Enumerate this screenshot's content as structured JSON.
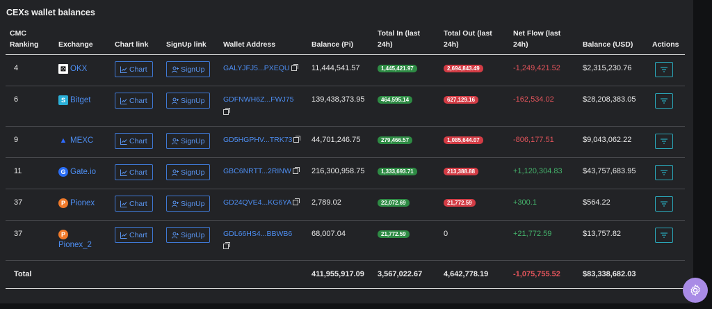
{
  "title": "CEXs wallet balances",
  "headers": {
    "rank": "CMC Ranking",
    "exchange": "Exchange",
    "chart": "Chart link",
    "signup": "SignUp link",
    "wallet": "Wallet Address",
    "balance_pi": "Balance (Pi)",
    "total_in": "Total In (last 24h)",
    "total_out": "Total Out (last 24h)",
    "net_flow": "Net Flow (last 24h)",
    "balance_usd": "Balance (USD)",
    "actions": "Actions"
  },
  "buttons": {
    "chart": "Chart",
    "signup": "SignUp"
  },
  "rows": [
    {
      "rank": "4",
      "exchange": "OKX",
      "logo": "okx-logo",
      "wallet": "GALYJFJ5...PXEQU",
      "balance_pi": "11,444,541.57",
      "total_in": "1,445,421.97",
      "total_out": "2,694,843.49",
      "net_flow": "-1,249,421.52",
      "balance_usd": "$2,315,230.76"
    },
    {
      "rank": "6",
      "exchange": "Bitget",
      "logo": "bitget-logo",
      "wallet": "GDFNWH6Z...FWJ75",
      "balance_pi": "139,438,373.95",
      "total_in": "464,595.14",
      "total_out": "627,129.16",
      "net_flow": "-162,534.02",
      "balance_usd": "$28,208,383.05"
    },
    {
      "rank": "9",
      "exchange": "MEXC",
      "logo": "mexc-logo",
      "wallet": "GD5HGPHV...TRK73",
      "balance_pi": "44,701,246.75",
      "total_in": "279,466.57",
      "total_out": "1,085,644.07",
      "net_flow": "-806,177.51",
      "balance_usd": "$9,043,062.22"
    },
    {
      "rank": "11",
      "exchange": "Gate.io",
      "logo": "gate-logo",
      "wallet": "GBC6NRTT...2RINW",
      "balance_pi": "216,300,958.75",
      "total_in": "1,333,693.71",
      "total_out": "213,388.88",
      "net_flow": "+1,120,304.83",
      "balance_usd": "$43,757,683.95"
    },
    {
      "rank": "37",
      "exchange": "Pionex",
      "logo": "pionex-logo",
      "wallet": "GD24QVE4...KG6YA",
      "balance_pi": "2,789.02",
      "total_in": "22,072.69",
      "total_out": "21,772.59",
      "net_flow": "+300.1",
      "balance_usd": "$564.22"
    },
    {
      "rank": "37",
      "exchange": "Pionex_2",
      "logo": "pionex-logo",
      "wallet": "GDL66HS4...BBWB6",
      "balance_pi": "68,007.04",
      "total_in": "21,772.59",
      "total_out": "0",
      "net_flow": "+21,772.59",
      "balance_usd": "$13,757.82"
    }
  ],
  "total": {
    "label": "Total",
    "balance_pi": "411,955,917.09",
    "total_in": "3,567,022.67",
    "total_out": "4,642,778.19",
    "net_flow": "-1,075,755.52",
    "balance_usd": "$83,338,682.03"
  },
  "colors": {
    "in_pill": "#2e8b44",
    "out_pill": "#d33c45",
    "negative": "#e2545b",
    "positive": "#45b26b",
    "link": "#4d8df0",
    "settings_fab": "#a98be6"
  }
}
